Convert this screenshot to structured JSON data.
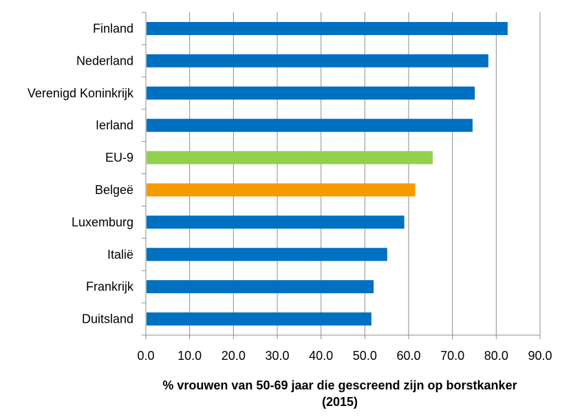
{
  "chart_data": {
    "type": "bar",
    "orientation": "horizontal",
    "categories": [
      "Finland",
      "Nederland",
      "Verenigd Koninkrijk",
      "Ierland",
      "EU-9",
      "Belgeë",
      "Luxemburg",
      "Italië",
      "Frankrijk",
      "Duitsland"
    ],
    "values": [
      82.6,
      78.2,
      75.1,
      74.6,
      65.5,
      61.5,
      59.0,
      55.1,
      52.0,
      51.5
    ],
    "bar_colors": [
      "#0070c0",
      "#0070c0",
      "#0070c0",
      "#0070c0",
      "#92d050",
      "#f59b00",
      "#0070c0",
      "#0070c0",
      "#0070c0",
      "#0070c0"
    ],
    "xlim": [
      0,
      90
    ],
    "xticks": [
      "0.0",
      "10.0",
      "20.0",
      "30.0",
      "40.0",
      "50.0",
      "60.0",
      "70.0",
      "80.0",
      "90.0"
    ],
    "xlabel_line1": "% vrouwen van 50-69 jaar die gescreend zijn op borstkanker",
    "xlabel_line2": "(2015)",
    "ylabel": "",
    "grid": true,
    "legend": "none"
  }
}
